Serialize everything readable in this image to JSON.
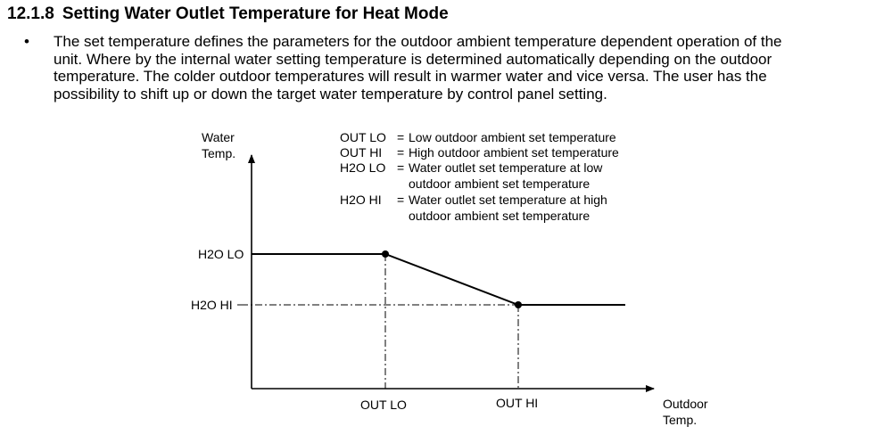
{
  "section": {
    "number": "12.1.8",
    "title": "Setting Water Outlet Temperature for Heat Mode"
  },
  "bullet_symbol": "•",
  "paragraph_lines": [
    "The set temperature defines the parameters for the outdoor ambient temperature dependent operation of the",
    "unit. Where by the internal water setting temperature is determined automatically depending on the outdoor",
    "temperature. The colder outdoor temperatures will result in warmer water and vice versa. The user has the",
    "possibility to shift up or down the target water temperature by control panel setting."
  ],
  "diagram": {
    "y_axis_label_line1": "Water",
    "y_axis_label_line2": "Temp.",
    "x_axis_label_line1": "Outdoor",
    "x_axis_label_line2": "Temp.",
    "y_ticks": {
      "h2o_lo": "H2O LO",
      "h2o_hi": "H2O HI"
    },
    "x_ticks": {
      "out_lo": "OUT LO",
      "out_hi": "OUT HI"
    },
    "legend": [
      {
        "key": "OUT LO",
        "sep": "=",
        "lines": [
          "Low outdoor ambient set temperature"
        ]
      },
      {
        "key": "OUT HI",
        "sep": "=",
        "lines": [
          "High outdoor ambient set temperature"
        ]
      },
      {
        "key": "H2O LO",
        "sep": "=",
        "lines": [
          "Water outlet set temperature at low",
          "outdoor ambient set temperature"
        ]
      },
      {
        "key": "H2O HI",
        "sep": "=",
        "lines": [
          "Water outlet set temperature at high",
          "outdoor ambient set temperature"
        ]
      }
    ]
  }
}
